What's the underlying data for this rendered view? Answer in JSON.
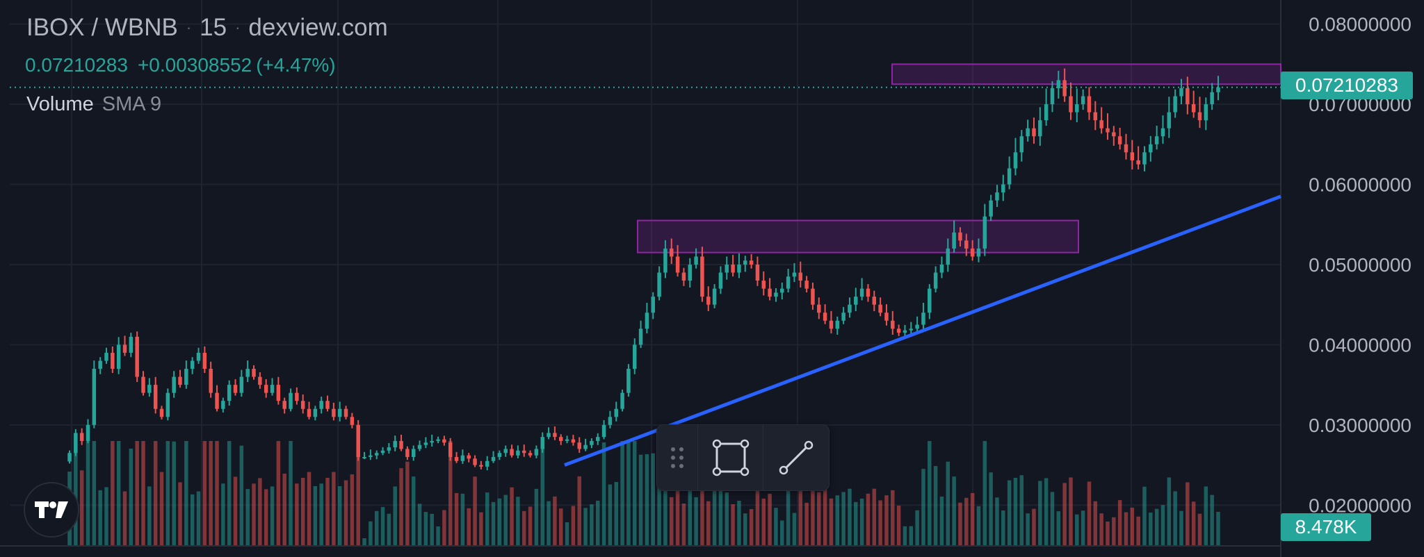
{
  "header": {
    "pair": "IBOX / WBNB",
    "interval": "15",
    "source": "dexview.com"
  },
  "ohlc": {
    "price": "0.07210283",
    "change": "+0.00308552",
    "change_pct": "(+4.47%)"
  },
  "volume_legend": {
    "name": "Volume",
    "study": "SMA 9"
  },
  "price_tag": "0.07210283",
  "volume_tag": "8.478K",
  "colors": {
    "up": "#26a69a",
    "down": "#ef5350",
    "trendline": "#2962ff",
    "zone": "#9c27b0",
    "background": "#131722"
  },
  "icons": [
    "drag-grip-icon",
    "rectangle-tool-icon",
    "line-tool-icon",
    "tradingview-logo-icon"
  ],
  "chart_data": {
    "type": "candlestick",
    "y_axis": {
      "range": [
        0.015,
        0.083
      ],
      "ticks": [
        "0.08000000",
        "0.07000000",
        "0.06000000",
        "0.05000000",
        "0.04000000",
        "0.03000000",
        "0.02000000"
      ]
    },
    "grid": true,
    "last_price": 0.07210283,
    "candles_close": [
      0.0265,
      0.029,
      0.028,
      0.03,
      0.037,
      0.038,
      0.039,
      0.037,
      0.04,
      0.039,
      0.041,
      0.036,
      0.034,
      0.035,
      0.032,
      0.031,
      0.034,
      0.036,
      0.035,
      0.037,
      0.038,
      0.039,
      0.037,
      0.034,
      0.032,
      0.033,
      0.035,
      0.034,
      0.036,
      0.037,
      0.036,
      0.035,
      0.034,
      0.035,
      0.033,
      0.032,
      0.034,
      0.033,
      0.032,
      0.031,
      0.032,
      0.033,
      0.032,
      0.031,
      0.032,
      0.031,
      0.03,
      0.026,
      0.026,
      0.0262,
      0.0265,
      0.0268,
      0.0272,
      0.028,
      0.027,
      0.026,
      0.027,
      0.0275,
      0.0278,
      0.028,
      0.0282,
      0.0278,
      0.026,
      0.0255,
      0.0262,
      0.0258,
      0.025,
      0.0248,
      0.0255,
      0.026,
      0.0265,
      0.027,
      0.0262,
      0.0268,
      0.0265,
      0.0262,
      0.027,
      0.0285,
      0.029,
      0.0285,
      0.028,
      0.0282,
      0.0278,
      0.027,
      0.0275,
      0.028,
      0.0285,
      0.03,
      0.031,
      0.032,
      0.034,
      0.037,
      0.04,
      0.042,
      0.044,
      0.046,
      0.049,
      0.052,
      0.051,
      0.049,
      0.048,
      0.05,
      0.051,
      0.046,
      0.045,
      0.047,
      0.049,
      0.05,
      0.049,
      0.05,
      0.0505,
      0.05,
      0.048,
      0.047,
      0.046,
      0.0465,
      0.047,
      0.0485,
      0.049,
      0.048,
      0.047,
      0.045,
      0.044,
      0.043,
      0.042,
      0.043,
      0.044,
      0.045,
      0.046,
      0.047,
      0.046,
      0.045,
      0.044,
      0.043,
      0.042,
      0.0415,
      0.0418,
      0.042,
      0.0425,
      0.044,
      0.047,
      0.049,
      0.05,
      0.052,
      0.054,
      0.053,
      0.052,
      0.051,
      0.052,
      0.056,
      0.058,
      0.059,
      0.06,
      0.062,
      0.064,
      0.066,
      0.067,
      0.066,
      0.068,
      0.07,
      0.072,
      0.073,
      0.071,
      0.069,
      0.07,
      0.071,
      0.069,
      0.068,
      0.067,
      0.0665,
      0.066,
      0.065,
      0.064,
      0.063,
      0.0625,
      0.064,
      0.065,
      0.066,
      0.067,
      0.069,
      0.071,
      0.072,
      0.07,
      0.069,
      0.068,
      0.07,
      0.0715,
      0.07210283
    ],
    "zones": [
      {
        "from": 0.0515,
        "to": 0.0555,
        "label": ""
      },
      {
        "from": 0.0725,
        "to": 0.075,
        "label": ""
      }
    ],
    "trendline": {
      "from_price": 0.025,
      "to_price": 0.0585
    }
  }
}
